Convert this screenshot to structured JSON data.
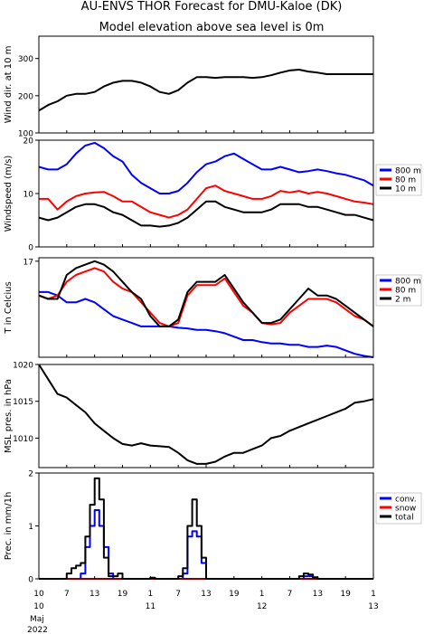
{
  "title_line1": "AU-ENVS THOR Forecast for DMU-Kaloe (DK)",
  "title_line2": "Model elevation above sea level is    0m",
  "colors": {
    "blue": "#0000ff",
    "red": "#ff0000",
    "black": "#000000"
  },
  "x_axis": {
    "tick_labels": [
      "10",
      "7",
      "13",
      "19",
      "1",
      "7",
      "13",
      "19",
      "1",
      "7",
      "13",
      "19",
      "1"
    ],
    "day_labels": [
      "11",
      "12",
      "13"
    ],
    "date_label_day": "10",
    "month_label": "Maj",
    "year_label": "2022"
  },
  "chart_data": [
    {
      "type": "line",
      "ylabel": "Wind dir. at 10 m",
      "ylim": [
        100,
        360
      ],
      "yticks": [
        100,
        200,
        300
      ],
      "x_unit": "hours since 2022-05-10 00:00 (axis start)",
      "series": [
        {
          "color": "black",
          "x": [
            0,
            2,
            4,
            6,
            8,
            10,
            12,
            14,
            16,
            18,
            20,
            22,
            24,
            26,
            28,
            30,
            32,
            34,
            36,
            38,
            40,
            42,
            44,
            46,
            48,
            50,
            52,
            54,
            56,
            58,
            60,
            62,
            64,
            66,
            68,
            70,
            72
          ],
          "y": [
            160,
            175,
            185,
            200,
            205,
            205,
            210,
            225,
            235,
            240,
            240,
            235,
            225,
            210,
            205,
            215,
            235,
            250,
            250,
            248,
            250,
            250,
            250,
            248,
            250,
            255,
            262,
            268,
            270,
            265,
            262,
            258,
            258,
            258,
            258,
            258,
            258
          ]
        }
      ]
    },
    {
      "type": "line",
      "ylabel": "Windspeed (m/s)",
      "ylim": [
        0,
        20
      ],
      "yticks": [
        0,
        10,
        20
      ],
      "series": [
        {
          "name": "800 m",
          "color": "blue",
          "x": [
            0,
            2,
            4,
            6,
            8,
            10,
            12,
            14,
            16,
            18,
            20,
            22,
            24,
            26,
            28,
            30,
            32,
            34,
            36,
            38,
            40,
            42,
            44,
            46,
            48,
            50,
            52,
            54,
            56,
            58,
            60,
            62,
            64,
            66,
            68,
            70,
            72
          ],
          "y": [
            15,
            14.5,
            14.5,
            15.5,
            17.5,
            19,
            19.5,
            18.5,
            17,
            16,
            13.5,
            12,
            11,
            10,
            10,
            10.5,
            12,
            14,
            15.5,
            16,
            17,
            17.5,
            16.5,
            15.5,
            14.5,
            14.5,
            15,
            14.5,
            14,
            14.2,
            14.5,
            14.2,
            13.8,
            13.5,
            13,
            12.5,
            11.5
          ]
        },
        {
          "name": "80 m",
          "color": "red",
          "x": [
            0,
            2,
            4,
            6,
            8,
            10,
            12,
            14,
            16,
            18,
            20,
            22,
            24,
            26,
            28,
            30,
            32,
            34,
            36,
            38,
            40,
            42,
            44,
            46,
            48,
            50,
            52,
            54,
            56,
            58,
            60,
            62,
            64,
            66,
            68,
            70,
            72
          ],
          "y": [
            9,
            9,
            7,
            8.5,
            9.5,
            10,
            10.2,
            10.3,
            9.5,
            8.5,
            8.5,
            7.5,
            6.5,
            6,
            5.5,
            6,
            7,
            9,
            11,
            11.5,
            10.5,
            10,
            9.5,
            9,
            9,
            9.5,
            10.5,
            10.2,
            10.5,
            10,
            10.3,
            10,
            9.5,
            9,
            8.5,
            8.3,
            8
          ]
        },
        {
          "name": "10 m",
          "color": "black",
          "x": [
            0,
            2,
            4,
            6,
            8,
            10,
            12,
            14,
            16,
            18,
            20,
            22,
            24,
            26,
            28,
            30,
            32,
            34,
            36,
            38,
            40,
            42,
            44,
            46,
            48,
            50,
            52,
            54,
            56,
            58,
            60,
            62,
            64,
            66,
            68,
            70,
            72
          ],
          "y": [
            5.5,
            5,
            5.5,
            6.5,
            7.5,
            8,
            8,
            7.5,
            6.5,
            6,
            5,
            4,
            4,
            3.8,
            4,
            4.5,
            5.5,
            7,
            8.5,
            8.5,
            7.5,
            7,
            6.5,
            6.5,
            6.5,
            7,
            8,
            8,
            8,
            7.5,
            7.5,
            7,
            6.5,
            6,
            6,
            5.5,
            5
          ]
        }
      ]
    },
    {
      "type": "line",
      "ylabel": "T in Celcius",
      "ylim": [
        3,
        17.5
      ],
      "yticks": [
        17
      ],
      "series": [
        {
          "name": "800 m",
          "color": "blue",
          "x": [
            0,
            2,
            4,
            6,
            8,
            10,
            12,
            14,
            16,
            18,
            20,
            22,
            24,
            26,
            28,
            30,
            32,
            34,
            36,
            38,
            40,
            42,
            44,
            46,
            48,
            50,
            52,
            54,
            56,
            58,
            60,
            62,
            64,
            66,
            68,
            70,
            72
          ],
          "y": [
            12.5,
            12.5,
            12,
            11,
            11,
            11.5,
            11,
            10,
            9,
            8.5,
            8,
            7.5,
            7.5,
            7.5,
            7.5,
            7.3,
            7.2,
            7,
            7,
            6.8,
            6.5,
            6,
            5.5,
            5.5,
            5.2,
            5,
            5,
            4.8,
            4.8,
            4.5,
            4.5,
            4.7,
            4.5,
            4,
            3.5,
            3.2,
            3
          ]
        },
        {
          "name": "80 m",
          "color": "red",
          "x": [
            0,
            2,
            4,
            6,
            8,
            10,
            12,
            14,
            16,
            18,
            20,
            22,
            24,
            26,
            28,
            30,
            32,
            34,
            36,
            38,
            40,
            42,
            44,
            46,
            48,
            50,
            52,
            54,
            56,
            58,
            60,
            62,
            64,
            66,
            68,
            70,
            72
          ],
          "y": [
            12,
            11.5,
            12,
            14,
            15,
            15.5,
            16,
            15.5,
            14,
            13,
            12.5,
            11,
            9.5,
            8,
            7.5,
            8,
            12,
            13.5,
            13.5,
            13.5,
            14.5,
            12.5,
            10.5,
            9.5,
            8,
            7.8,
            8,
            9.5,
            10.5,
            11.5,
            11.5,
            11.5,
            11,
            10,
            9,
            8.5,
            7.5
          ]
        },
        {
          "name": "2 m",
          "color": "black",
          "x": [
            0,
            2,
            4,
            6,
            8,
            10,
            12,
            14,
            16,
            18,
            20,
            22,
            24,
            26,
            28,
            30,
            32,
            34,
            36,
            38,
            40,
            42,
            44,
            46,
            48,
            50,
            52,
            54,
            56,
            58,
            60,
            62,
            64,
            66,
            68,
            70,
            72
          ],
          "y": [
            12,
            11.5,
            11.5,
            15,
            16,
            16.5,
            17,
            16.5,
            15.5,
            14,
            12.5,
            11.5,
            9,
            7.5,
            7.5,
            8.5,
            12.5,
            14,
            14,
            14,
            15,
            13,
            11,
            9.5,
            8,
            8,
            8.5,
            10,
            11.5,
            13,
            12,
            12,
            11.5,
            10.5,
            9.5,
            8.5,
            7.5
          ]
        }
      ]
    },
    {
      "type": "line",
      "ylabel": "MSL pres. in hPa",
      "ylim": [
        1006,
        1020
      ],
      "yticks": [
        1010,
        1015,
        1020
      ],
      "series": [
        {
          "color": "black",
          "x": [
            0,
            2,
            4,
            6,
            8,
            10,
            12,
            14,
            16,
            18,
            20,
            22,
            24,
            26,
            28,
            30,
            32,
            34,
            36,
            38,
            40,
            42,
            44,
            46,
            48,
            50,
            52,
            54,
            56,
            58,
            60,
            62,
            64,
            66,
            68,
            70,
            72
          ],
          "y": [
            1020,
            1018,
            1016,
            1015.5,
            1014.5,
            1013.5,
            1012,
            1011,
            1010,
            1009.2,
            1009,
            1009.3,
            1009,
            1008.9,
            1008.8,
            1008,
            1007,
            1006.5,
            1006.5,
            1006.8,
            1007.5,
            1008,
            1008,
            1008.5,
            1009,
            1010,
            1010.3,
            1011,
            1011.5,
            1012,
            1012.5,
            1013,
            1013.5,
            1014,
            1014.8,
            1015,
            1015.3
          ]
        }
      ]
    },
    {
      "type": "line",
      "ylabel": "Prec. in mm/1h",
      "ylim": [
        0,
        2
      ],
      "yticks": [
        0,
        1,
        2
      ],
      "step": true,
      "series": [
        {
          "name": "conv.",
          "color": "blue",
          "x": [
            0,
            6,
            7,
            8,
            9,
            10,
            11,
            12,
            13,
            14,
            15,
            16,
            17,
            18,
            24,
            30,
            31,
            32,
            33,
            34,
            35,
            36,
            37,
            56,
            57,
            58,
            59,
            60,
            72
          ],
          "y": [
            0,
            0,
            0,
            0,
            0.1,
            0.6,
            1.0,
            1.3,
            1.0,
            0.6,
            0.1,
            0,
            0,
            0,
            0,
            0,
            0.1,
            0.8,
            0.9,
            0.8,
            0.3,
            0,
            0,
            0,
            0.05,
            0.05,
            0,
            0,
            0
          ]
        },
        {
          "name": "snow",
          "color": "red",
          "x": [
            0,
            72
          ],
          "y": [
            0,
            0
          ]
        },
        {
          "name": "total",
          "color": "black",
          "x": [
            0,
            6,
            7,
            8,
            9,
            10,
            11,
            12,
            13,
            14,
            15,
            16,
            17,
            18,
            19,
            24,
            25,
            30,
            31,
            32,
            33,
            34,
            35,
            36,
            37,
            56,
            57,
            58,
            59,
            60,
            61,
            72
          ],
          "y": [
            0,
            0.1,
            0.2,
            0.25,
            0.3,
            0.8,
            1.4,
            1.9,
            1.5,
            0.4,
            0.05,
            0.05,
            0.1,
            0,
            0,
            0.02,
            0,
            0.05,
            0.2,
            1.0,
            1.5,
            1.0,
            0.4,
            0,
            0,
            0.05,
            0.1,
            0.08,
            0.03,
            0,
            0,
            0
          ]
        }
      ]
    }
  ]
}
